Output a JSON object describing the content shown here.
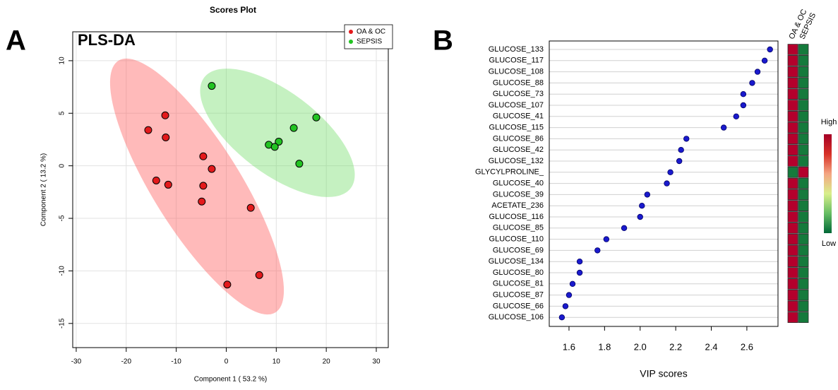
{
  "chart_data": [
    {
      "type": "scatter",
      "panel_label": "A",
      "title": "Scores Plot",
      "annotation": "PLS-DA",
      "x_label": "Component 1 ( 53.2 %)",
      "y_label": "Component 2 ( 13.2 %)",
      "xlim": [
        -30.7,
        32.4
      ],
      "ylim": [
        -17.3,
        12.75
      ],
      "xticks": [
        -30,
        -20,
        -10,
        0,
        10,
        20,
        30
      ],
      "yticks": [
        -15,
        -10,
        -5,
        0,
        5,
        10
      ],
      "grid": true,
      "legend": "top-right",
      "series": [
        {
          "name": "OA & OC",
          "color": "#e31a1c",
          "x": [
            -12.2,
            -15.6,
            -12.1,
            -4.6,
            -2.9,
            -14.0,
            -11.6,
            -4.6,
            -4.9,
            4.9,
            6.6,
            0.2
          ],
          "values": [
            4.8,
            3.4,
            2.7,
            0.9,
            -0.3,
            -1.4,
            -1.8,
            -1.9,
            -3.4,
            -4.0,
            -10.4,
            -11.3
          ]
        },
        {
          "name": "SEPSIS",
          "color": "#22c322",
          "x": [
            -2.9,
            18.0,
            13.5,
            8.5,
            10.5,
            9.7,
            14.6
          ],
          "values": [
            7.6,
            4.6,
            3.6,
            2.0,
            2.3,
            1.8,
            0.2
          ]
        }
      ]
    },
    {
      "type": "dot",
      "panel_label": "B",
      "x_label": "VIP scores",
      "categories": [
        "GLUCOSE_133",
        "GLUCOSE_117",
        "GLUCOSE_108",
        "GLUCOSE_88",
        "GLUCOSE_73",
        "GLUCOSE_107",
        "GLUCOSE_41",
        "GLUCOSE_115",
        "GLUCOSE_86",
        "GLUCOSE_42",
        "GLUCOSE_132",
        "GLYCYLPROLINE_",
        "GLUCOSE_40",
        "GLUCOSE_39",
        "ACETATE_236",
        "GLUCOSE_116",
        "GLUCOSE_85",
        "GLUCOSE_110",
        "GLUCOSE_69",
        "GLUCOSE_134",
        "GLUCOSE_80",
        "GLUCOSE_81",
        "GLUCOSE_87",
        "GLUCOSE_66",
        "GLUCOSE_106"
      ],
      "values": [
        2.73,
        2.7,
        2.66,
        2.63,
        2.58,
        2.58,
        2.54,
        2.47,
        2.26,
        2.23,
        2.22,
        2.17,
        2.15,
        2.04,
        2.01,
        2.0,
        1.91,
        1.81,
        1.76,
        1.66,
        1.66,
        1.62,
        1.6,
        1.58,
        1.56
      ],
      "color": "#1a1acd",
      "xlim": [
        1.489,
        2.775
      ],
      "xticks": [
        1.6,
        1.8,
        {
          "value": 2,
          "label": "2.0"
        },
        2.2,
        2.4,
        2.6
      ],
      "grid": true,
      "heatmap_columns": [
        "OA & OC",
        "SEPSIS"
      ],
      "heatmap_colors": [
        [
          "#b4002c",
          "#157a3c"
        ],
        [
          "#b4002c",
          "#157a3c"
        ],
        [
          "#b4002c",
          "#157a3c"
        ],
        [
          "#b4002c",
          "#157a3c"
        ],
        [
          "#b4002c",
          "#157a3c"
        ],
        [
          "#b4002c",
          "#157a3c"
        ],
        [
          "#b4002c",
          "#157a3c"
        ],
        [
          "#b4002c",
          "#157a3c"
        ],
        [
          "#b4002c",
          "#157a3c"
        ],
        [
          "#b4002c",
          "#157a3c"
        ],
        [
          "#b4002c",
          "#157a3c"
        ],
        [
          "#157a3c",
          "#b4002c"
        ],
        [
          "#b4002c",
          "#157a3c"
        ],
        [
          "#b4002c",
          "#157a3c"
        ],
        [
          "#b4002c",
          "#157a3c"
        ],
        [
          "#b4002c",
          "#157a3c"
        ],
        [
          "#b4002c",
          "#157a3c"
        ],
        [
          "#b4002c",
          "#157a3c"
        ],
        [
          "#b4002c",
          "#157a3c"
        ],
        [
          "#b4002c",
          "#157a3c"
        ],
        [
          "#b4002c",
          "#157a3c"
        ],
        [
          "#b4002c",
          "#157a3c"
        ],
        [
          "#b4002c",
          "#157a3c"
        ],
        [
          "#b4002c",
          "#157a3c"
        ],
        [
          "#b4002c",
          "#157a3c"
        ]
      ],
      "scale_labels": [
        "High",
        "Low"
      ],
      "scale_colors": [
        "#a50026",
        "#d73027",
        "#f4a582",
        "#d9ef8b",
        "#66bd63",
        "#006837"
      ]
    }
  ]
}
